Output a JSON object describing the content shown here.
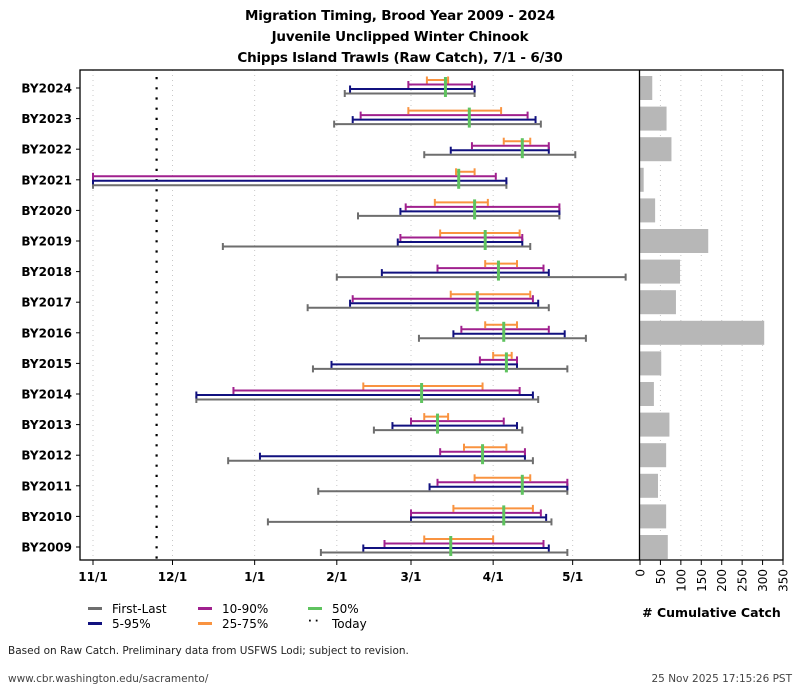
{
  "title_lines": [
    "Migration Timing, Brood Year 2009 - 2024",
    "Juvenile Unclipped Winter Chinook",
    "Chipps Island Trawls (Raw Catch), 7/1 - 6/30"
  ],
  "chart_data": [
    {
      "type": "range-timeline",
      "title": "Migration Timing, Brood Year 2009 - 2024",
      "xlabel": "",
      "ylabel": "",
      "x_axis_origin": "11/1",
      "x_ticks": [
        "11/1",
        "12/1",
        "1/1",
        "2/1",
        "3/1",
        "4/1",
        "5/1"
      ],
      "xlim": [
        "11/1",
        "5/31"
      ],
      "today": "11/25",
      "grid": "vertical dotted",
      "legend_position": "bottom-left",
      "colors": {
        "first_last": "#6e6e6e",
        "p5_95": "#11117f",
        "p10_90": "#a0208e",
        "p25_75": "#f99340",
        "median": "#5fc35f",
        "today": "#000000"
      },
      "categories": [
        "BY2024",
        "BY2023",
        "BY2022",
        "BY2021",
        "BY2020",
        "BY2019",
        "BY2018",
        "BY2017",
        "BY2016",
        "BY2015",
        "BY2014",
        "BY2013",
        "BY2012",
        "BY2011",
        "BY2010",
        "BY2009"
      ],
      "series": [
        {
          "name": "First-Last",
          "key": "first_last",
          "values": [
            [
              "2/4",
              "3/25"
            ],
            [
              "1/31",
              "4/19"
            ],
            [
              "3/6",
              "5/2"
            ],
            [
              "11/1",
              "4/6"
            ],
            [
              "2/9",
              "4/26"
            ],
            [
              "12/20",
              "4/15"
            ],
            [
              "2/1",
              "5/21"
            ],
            [
              "1/21",
              "4/22"
            ],
            [
              "3/4",
              "5/6"
            ],
            [
              "1/23",
              "4/29"
            ],
            [
              "12/10",
              "4/18"
            ],
            [
              "2/15",
              "4/12"
            ],
            [
              "12/22",
              "4/16"
            ],
            [
              "1/25",
              "4/29"
            ],
            [
              "1/6",
              "4/23"
            ],
            [
              "1/26",
              "4/29"
            ]
          ]
        },
        {
          "name": "5-95%",
          "key": "p5_95",
          "values": [
            [
              "2/6",
              "3/25"
            ],
            [
              "2/7",
              "4/17"
            ],
            [
              "3/16",
              "4/22"
            ],
            [
              "11/1",
              "4/6"
            ],
            [
              "2/25",
              "4/26"
            ],
            [
              "2/24",
              "4/12"
            ],
            [
              "2/18",
              "4/22"
            ],
            [
              "2/6",
              "4/18"
            ],
            [
              "3/17",
              "4/28"
            ],
            [
              "1/30",
              "4/10"
            ],
            [
              "12/10",
              "4/16"
            ],
            [
              "2/22",
              "4/10"
            ],
            [
              "1/3",
              "4/13"
            ],
            [
              "3/8",
              "4/29"
            ],
            [
              "3/1",
              "4/21"
            ],
            [
              "2/11",
              "4/22"
            ]
          ]
        },
        {
          "name": "10-90%",
          "key": "p10_90",
          "values": [
            [
              "2/28",
              "3/24"
            ],
            [
              "2/10",
              "4/14"
            ],
            [
              "3/24",
              "4/22"
            ],
            [
              "11/1",
              "4/2"
            ],
            [
              "2/27",
              "4/26"
            ],
            [
              "2/25",
              "4/12"
            ],
            [
              "3/11",
              "4/20"
            ],
            [
              "2/7",
              "4/16"
            ],
            [
              "3/20",
              "4/22"
            ],
            [
              "3/27",
              "4/10"
            ],
            [
              "12/24",
              "4/11"
            ],
            [
              "3/1",
              "4/5"
            ],
            [
              "3/12",
              "4/13"
            ],
            [
              "3/11",
              "4/29"
            ],
            [
              "3/1",
              "4/19"
            ],
            [
              "2/19",
              "4/20"
            ]
          ]
        },
        {
          "name": "25-75%",
          "key": "p25_75",
          "values": [
            [
              "3/7",
              "3/15"
            ],
            [
              "2/28",
              "4/4"
            ],
            [
              "4/5",
              "4/15"
            ],
            [
              "3/18",
              "3/25"
            ],
            [
              "3/10",
              "3/30"
            ],
            [
              "3/12",
              "4/11"
            ],
            [
              "3/29",
              "4/10"
            ],
            [
              "3/16",
              "4/15"
            ],
            [
              "3/29",
              "4/10"
            ],
            [
              "4/1",
              "4/8"
            ],
            [
              "2/11",
              "3/28"
            ],
            [
              "3/6",
              "3/15"
            ],
            [
              "3/21",
              "4/6"
            ],
            [
              "3/25",
              "4/15"
            ],
            [
              "3/17",
              "4/16"
            ],
            [
              "3/6",
              "4/1"
            ]
          ]
        },
        {
          "name": "50%",
          "key": "median",
          "values": [
            "3/14",
            "3/23",
            "4/12",
            "3/19",
            "3/25",
            "3/29",
            "4/3",
            "3/26",
            "4/5",
            "4/6",
            "3/5",
            "3/11",
            "3/28",
            "4/12",
            "4/5",
            "3/16"
          ]
        }
      ]
    },
    {
      "type": "bar",
      "orientation": "horizontal",
      "title": "",
      "xlabel": "# Cumulative Catch",
      "xlim": [
        0,
        350
      ],
      "x_ticks": [
        0,
        50,
        100,
        150,
        200,
        250,
        300,
        350
      ],
      "grid": "vertical dotted",
      "color": "#b7b7b7",
      "categories": [
        "BY2024",
        "BY2023",
        "BY2022",
        "BY2021",
        "BY2020",
        "BY2019",
        "BY2018",
        "BY2017",
        "BY2016",
        "BY2015",
        "BY2014",
        "BY2013",
        "BY2012",
        "BY2011",
        "BY2010",
        "BY2009"
      ],
      "values": [
        30,
        65,
        77,
        9,
        37,
        167,
        98,
        88,
        304,
        52,
        34,
        72,
        64,
        44,
        64,
        68
      ]
    }
  ],
  "legend": {
    "items": [
      {
        "label": "First-Last",
        "key": "first_last"
      },
      {
        "label": "5-95%",
        "key": "p5_95"
      },
      {
        "label": "10-90%",
        "key": "p10_90"
      },
      {
        "label": "25-75%",
        "key": "p25_75"
      },
      {
        "label": "50%",
        "key": "median"
      },
      {
        "label": "Today",
        "key": "today"
      }
    ]
  },
  "footer": {
    "note": "Based on Raw Catch. Preliminary data from USFWS Lodi; subject to revision.",
    "url": "www.cbr.washington.edu/sacramento/",
    "timestamp": "25 Nov 2025 17:15:26 PST"
  }
}
